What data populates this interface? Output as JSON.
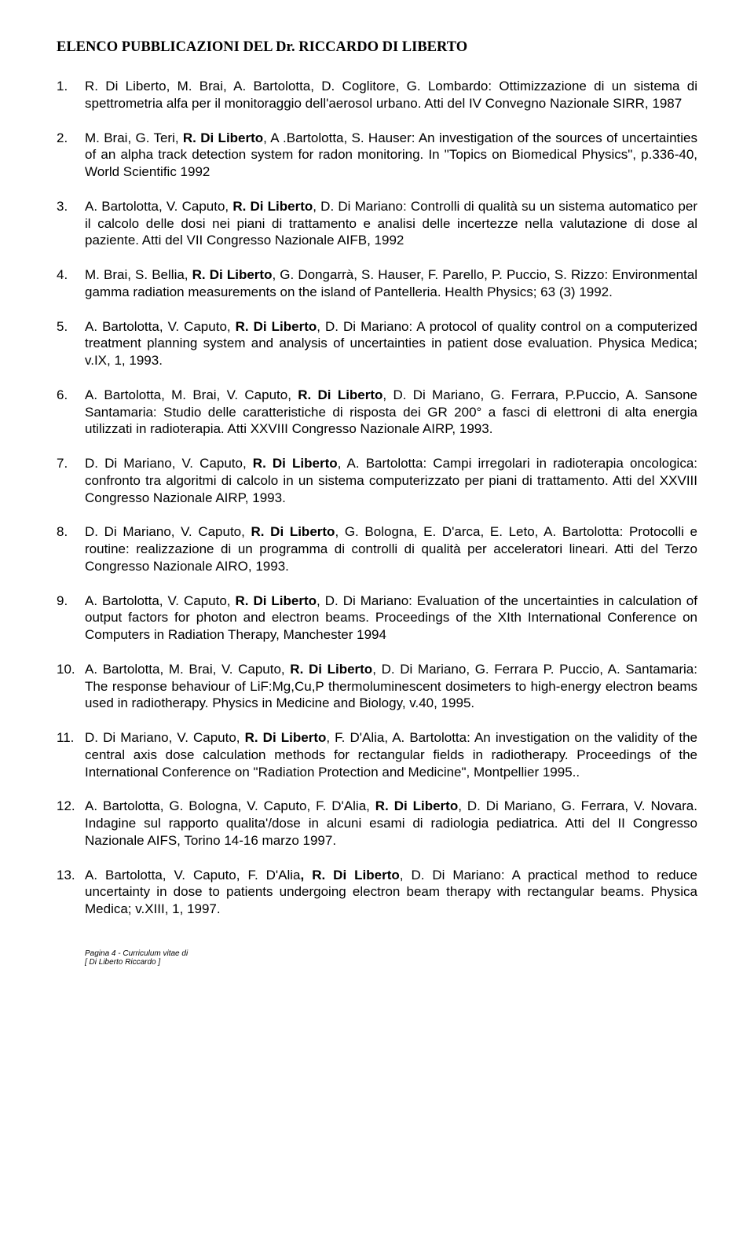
{
  "title": "ELENCO PUBBLICAZIONI DEL Dr. RICCARDO DI LIBERTO",
  "publications": [
    {
      "num": "1.",
      "html": "R. Di Liberto, M. Brai, A. Bartolotta, D. Coglitore, G. Lombardo: Ottimizzazione di un sistema di spettrometria alfa per il monitoraggio dell'aerosol urbano. Atti del IV Convegno Nazionale SIRR, 1987"
    },
    {
      "num": "2.",
      "html": "M. Brai, G. Teri, <b>R. Di Liberto</b>, A .Bartolotta, S. Hauser: An investigation of the sources of uncertainties of an alpha track detection system for radon monitoring. In \"Topics on Biomedical Physics\", p.336-40, World Scientific 1992"
    },
    {
      "num": "3.",
      "html": "A. Bartolotta, V. Caputo, <b>R. Di Liberto</b>, D. Di Mariano: Controlli di qualità su un sistema automatico per il calcolo delle dosi nei piani di trattamento e analisi delle incertezze nella valutazione di dose al paziente. Atti del VII Congresso Nazionale AIFB, 1992"
    },
    {
      "num": "4.",
      "html": "M. Brai, S. Bellia, <b>R. Di Liberto</b>, G. Dongarrà, S. Hauser, F. Parello, P. Puccio, S. Rizzo: Environmental gamma radiation measurements on the island of Pantelleria. Health Physics; 63 (3) 1992."
    },
    {
      "num": "5.",
      "html": "A. Bartolotta, V. Caputo, <b>R. Di Liberto</b>, D. Di Mariano: A protocol of quality control on a computerized treatment planning system and analysis of uncertainties in patient dose evaluation. Physica Medica; v.IX, 1, 1993."
    },
    {
      "num": "6.",
      "html": "A. Bartolotta, M. Brai, V. Caputo, <b>R. Di Liberto</b>, D. Di Mariano, G. Ferrara, P.Puccio, A. Sansone Santamaria: Studio delle caratteristiche di risposta dei GR 200° a fasci di elettroni di alta energia utilizzati in radioterapia. Atti XXVIII Congresso Nazionale AIRP, 1993."
    },
    {
      "num": "7.",
      "html": "D. Di Mariano, V. Caputo, <b>R. Di Liberto</b>, A. Bartolotta: Campi irregolari in radioterapia oncologica: confronto tra algoritmi di calcolo in un sistema computerizzato per piani di trattamento. Atti del XXVIII Congresso Nazionale AIRP, 1993."
    },
    {
      "num": "8.",
      "html": "D. Di Mariano, V. Caputo, <b>R. Di Liberto</b>, G. Bologna, E. D'arca, E. Leto, A. Bartolotta: Protocolli e routine: realizzazione di un programma di controlli di qualità per acceleratori lineari. Atti del Terzo Congresso Nazionale AIRO, 1993."
    },
    {
      "num": "9.",
      "html": "A. Bartolotta, V. Caputo, <b>R. Di Liberto</b>, D. Di Mariano: Evaluation of the uncertainties in calculation of output factors for photon and electron beams. Proceedings of the XIth International Conference on Computers in Radiation Therapy, Manchester 1994"
    },
    {
      "num": "10.",
      "html": "A. Bartolotta, M. Brai, V. Caputo, <b>R. Di Liberto</b>, D. Di Mariano, G. Ferrara P. Puccio, A. Santamaria: The response behaviour of LiF:Mg,Cu,P thermoluminescent dosimeters to high-energy electron beams used in radiotherapy. Physics in Medicine and Biology, v.40, 1995."
    },
    {
      "num": "11.",
      "html": "D. Di Mariano, V. Caputo, <b>R. Di Liberto</b>, F. D'Alia, A. Bartolotta: An investigation on the validity of the central axis dose calculation methods for rectangular fields in radiotherapy. Proceedings of the International Conference on \"Radiation Protection and Medicine\", Montpellier 1995.."
    },
    {
      "num": "12.",
      "html": "A. Bartolotta, G. Bologna, V. Caputo, F. D'Alia, <b>R. Di Liberto</b>, D. Di Mariano, G. Ferrara, V. Novara. Indagine sul rapporto qualita'/dose in alcuni esami di radiologia pediatrica. Atti del II Congresso Nazionale AIFS, Torino 14-16 marzo 1997."
    },
    {
      "num": "13.",
      "html": "A. Bartolotta, V. Caputo, F. D'Alia<b>, R. Di Liberto</b>, D. Di Mariano: A practical method to reduce uncertainty in dose to patients undergoing electron beam therapy with rectangular beams. Physica Medica; v.XIII, 1, 1997."
    }
  ],
  "footer": {
    "line1": "Pagina 4 - Curriculum vitae di",
    "line2": "[ Di Liberto Riccardo ]"
  }
}
